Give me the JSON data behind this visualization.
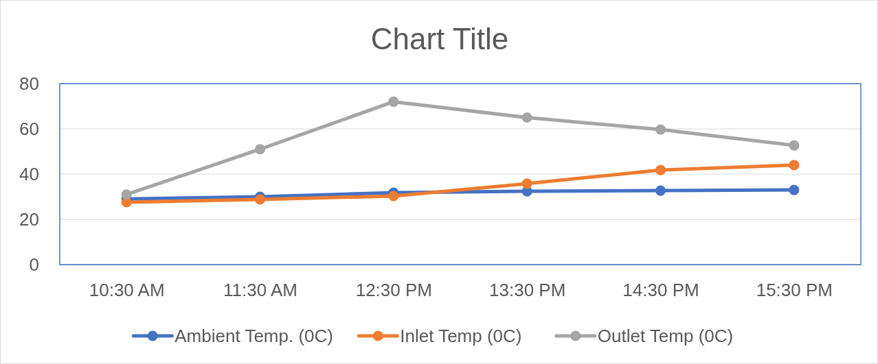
{
  "chart_data": {
    "type": "line",
    "title": "Chart Title",
    "categories": [
      "10:30 AM",
      "11:30 AM",
      "12:30 PM",
      "13:30 PM",
      "14:30 PM",
      "15:30 PM"
    ],
    "series": [
      {
        "name": "Ambient Temp. (0C)",
        "color": "#4472c4",
        "values": [
          29,
          30,
          31.8,
          32.4,
          32.7,
          33
        ]
      },
      {
        "name": "Inlet Temp (0C)",
        "color": "#ed7d31",
        "values": [
          27.6,
          28.8,
          30.3,
          35.8,
          41.8,
          44
        ]
      },
      {
        "name": "Outlet Temp (0C)",
        "color": "#a5a5a5",
        "values": [
          31,
          51,
          72,
          65,
          59.7,
          52.7
        ]
      }
    ],
    "ylim": [
      0,
      80
    ],
    "yticks": [
      0,
      20,
      40,
      60,
      80
    ],
    "grid": "y",
    "legend": "bottom",
    "marker": "circle",
    "line_style": "solid"
  }
}
